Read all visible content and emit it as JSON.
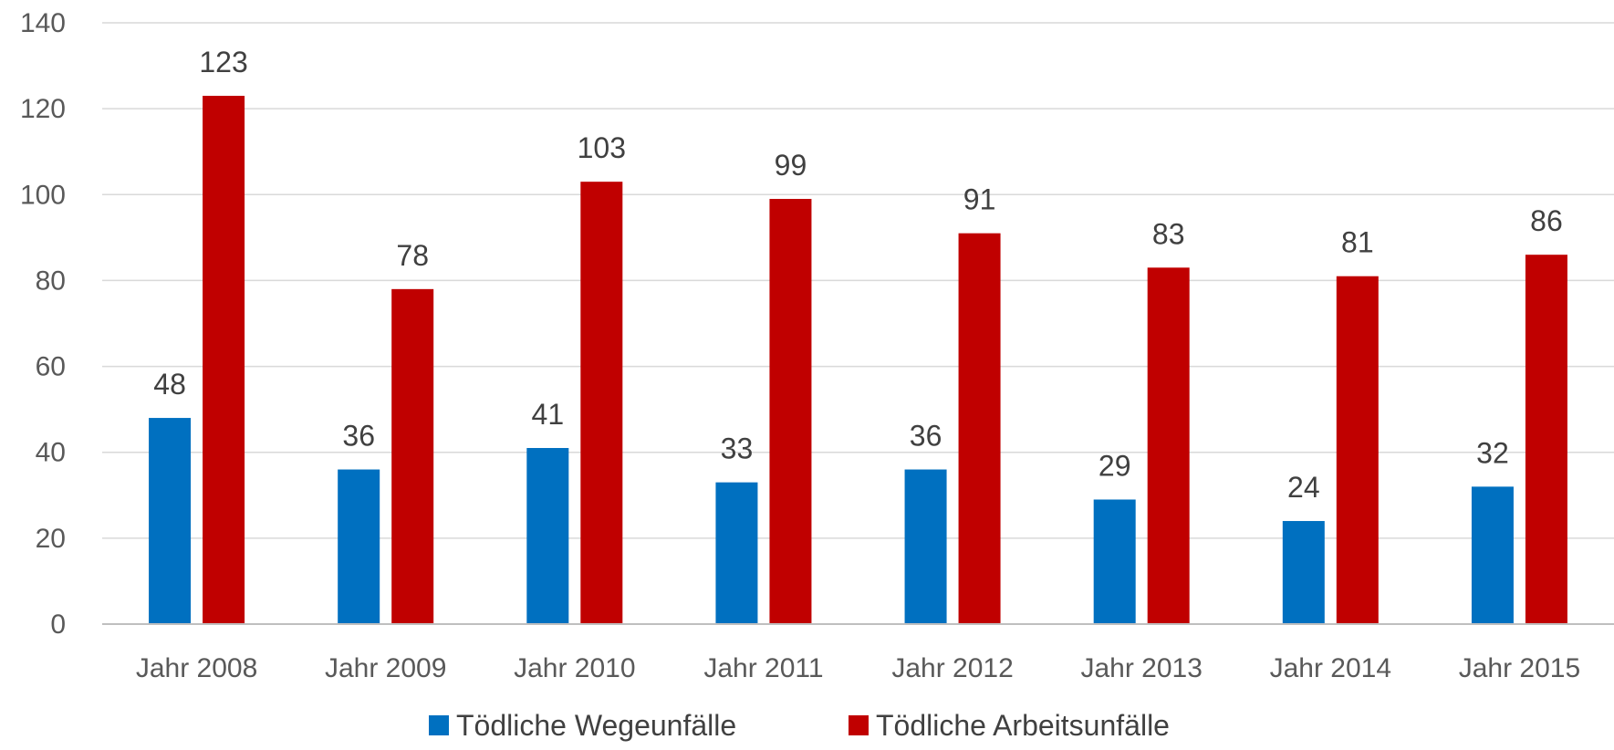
{
  "chart_data": {
    "type": "bar",
    "title": "",
    "xlabel": "",
    "ylabel": "",
    "categories": [
      "Jahr 2008",
      "Jahr 2009",
      "Jahr 2010",
      "Jahr 2011",
      "Jahr 2012",
      "Jahr 2013",
      "Jahr 2014",
      "Jahr 2015"
    ],
    "series": [
      {
        "name": "Tödliche Wegeunfälle",
        "color": "#0070C0",
        "values": [
          48,
          36,
          41,
          33,
          36,
          29,
          24,
          32
        ]
      },
      {
        "name": "Tödliche Arbeitsunfälle",
        "color": "#C00000",
        "values": [
          123,
          78,
          103,
          99,
          91,
          83,
          81,
          86
        ]
      }
    ],
    "ylim": [
      0,
      140
    ],
    "yticks": [
      0,
      20,
      40,
      60,
      80,
      100,
      120,
      140
    ],
    "grid": true,
    "legend_position": "bottom",
    "data_labels": true
  }
}
